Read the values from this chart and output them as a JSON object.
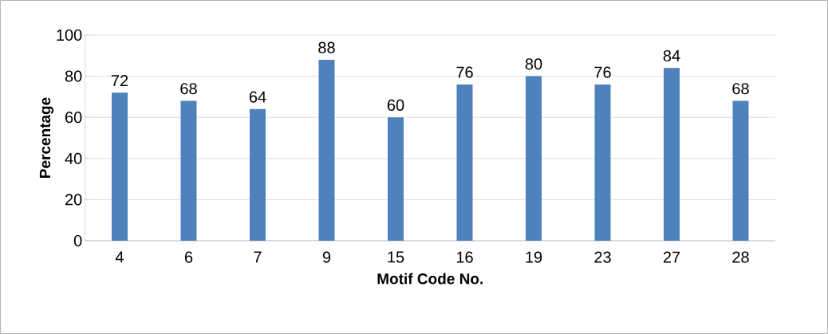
{
  "chart_data": {
    "type": "bar",
    "xlabel": "Motif Code No.",
    "ylabel": "Percentage",
    "categories": [
      "4",
      "6",
      "7",
      "9",
      "15",
      "16",
      "19",
      "23",
      "27",
      "28"
    ],
    "values": [
      72,
      68,
      64,
      88,
      60,
      76,
      80,
      76,
      84,
      68
    ],
    "color": "#4f81bd",
    "ylim": [
      0,
      100
    ],
    "yticks": [
      0,
      20,
      40,
      60,
      80,
      100
    ],
    "grid": "y",
    "data_labels": true
  }
}
